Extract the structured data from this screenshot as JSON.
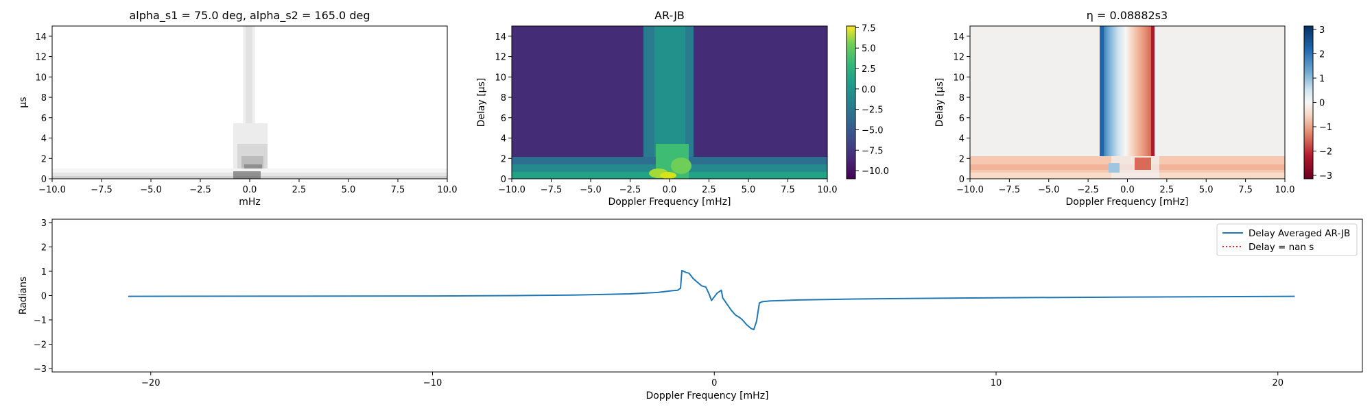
{
  "chart_data": [
    {
      "type": "heatmap",
      "title": "alpha_s1 = 75.0 deg, alpha_s2 = 165.0 deg",
      "xlabel": "mHz",
      "ylabel": "µs",
      "xlim": [
        -10,
        10
      ],
      "ylim": [
        0,
        15
      ],
      "xticks": [
        "−10.0",
        "−7.5",
        "−5.0",
        "−2.5",
        "0.0",
        "2.5",
        "5.0",
        "7.5",
        "10.0"
      ],
      "yticks": [
        "0",
        "2",
        "4",
        "6",
        "8",
        "10",
        "12",
        "14"
      ],
      "colormap": "greys",
      "grid": false
    },
    {
      "type": "heatmap",
      "title": "AR-JB",
      "xlabel": "Doppler Frequency [mHz]",
      "ylabel": "Delay [µs]",
      "xlim": [
        -10,
        10
      ],
      "ylim": [
        0,
        15
      ],
      "xticks": [
        "−10.0",
        "−7.5",
        "−5.0",
        "−2.5",
        "0.0",
        "2.5",
        "5.0",
        "7.5",
        "10.0"
      ],
      "yticks": [
        "0",
        "2",
        "4",
        "6",
        "8",
        "10",
        "12",
        "14"
      ],
      "colormap": "viridis",
      "colorbar_range": [
        -11,
        7.7
      ],
      "colorbar_ticks": [
        "7.5",
        "5.0",
        "2.5",
        "0.0",
        "−2.5",
        "−5.0",
        "−7.5",
        "−10.0"
      ],
      "grid": false
    },
    {
      "type": "heatmap",
      "title": "η = 0.08882s3",
      "xlabel": "Doppler Frequency [mHz]",
      "ylabel": "Delay [µs]",
      "xlim": [
        -10,
        10
      ],
      "ylim": [
        0,
        15
      ],
      "xticks": [
        "−10.0",
        "−7.5",
        "−5.0",
        "−2.5",
        "0.0",
        "2.5",
        "5.0",
        "7.5",
        "10.0"
      ],
      "yticks": [
        "0",
        "2",
        "4",
        "6",
        "8",
        "10",
        "12",
        "14"
      ],
      "colormap": "RdBu",
      "colorbar_range": [
        -3.14,
        3.14
      ],
      "colorbar_ticks": [
        "3",
        "2",
        "1",
        "0",
        "−1",
        "−2",
        "−3"
      ],
      "grid": false
    },
    {
      "type": "line",
      "xlabel": "Doppler Frequency [mHz]",
      "ylabel": "Radians",
      "xlim": [
        -23.5,
        23
      ],
      "ylim": [
        -3.14,
        3.14
      ],
      "xticks": [
        "−20",
        "−10",
        "0",
        "10",
        "20"
      ],
      "yticks": [
        "3",
        "2",
        "1",
        "0",
        "−1",
        "−2",
        "−3"
      ],
      "legend_position": "top-right",
      "series": [
        {
          "name": "Delay Averaged  AR-JB",
          "color": "#1f77b4",
          "style": "solid",
          "x": [
            -20.8,
            -15,
            -10,
            -7,
            -5,
            -3,
            -2,
            -1.5,
            -1.3,
            -1.2,
            -1.15,
            -1.0,
            -0.9,
            -0.75,
            -0.6,
            -0.45,
            -0.3,
            -0.2,
            -0.1,
            0.0,
            0.1,
            0.25,
            0.3,
            0.45,
            0.6,
            0.75,
            0.9,
            1.0,
            1.15,
            1.3,
            1.4,
            1.5,
            1.6,
            1.7,
            2.0,
            3,
            5,
            10,
            15,
            20.6
          ],
          "values": [
            -0.03,
            -0.025,
            -0.018,
            0.0,
            0.02,
            0.07,
            0.13,
            0.2,
            0.22,
            0.3,
            1.03,
            0.95,
            0.92,
            0.7,
            0.55,
            0.4,
            0.35,
            0.1,
            -0.2,
            -0.05,
            0.1,
            0.22,
            -0.1,
            -0.35,
            -0.6,
            -0.8,
            -0.9,
            -1.0,
            -1.2,
            -1.35,
            -1.4,
            -1.05,
            -0.3,
            -0.25,
            -0.22,
            -0.18,
            -0.14,
            -0.09,
            -0.06,
            -0.03
          ]
        },
        {
          "name": "Delay = nan s",
          "color": "#d62728",
          "style": "dotted",
          "x": [],
          "values": []
        }
      ]
    }
  ]
}
